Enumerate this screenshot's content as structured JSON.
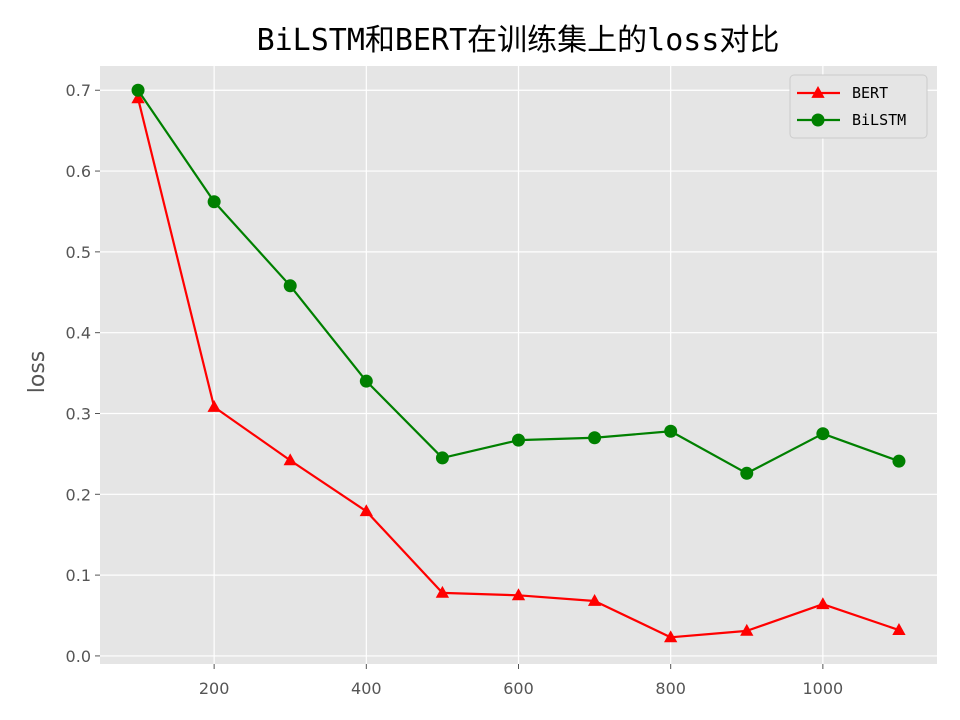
{
  "chart_data": {
    "type": "line",
    "title": "BiLSTM和BERT在训练集上的loss对比",
    "xlabel": "",
    "ylabel": "loss",
    "x": [
      100,
      200,
      300,
      400,
      500,
      600,
      700,
      800,
      900,
      1000,
      1100
    ],
    "xlim": [
      50,
      1150
    ],
    "ylim": [
      -0.01,
      0.73
    ],
    "xticks": [
      200,
      400,
      600,
      800,
      1000
    ],
    "yticks": [
      0.0,
      0.1,
      0.2,
      0.3,
      0.4,
      0.5,
      0.6,
      0.7
    ],
    "ytick_labels": [
      "0.0",
      "0.1",
      "0.2",
      "0.3",
      "0.4",
      "0.5",
      "0.6",
      "0.7"
    ],
    "grid": true,
    "legend_position": "top-right",
    "series": [
      {
        "name": "BERT",
        "color": "#ff0000",
        "marker": "triangle",
        "values": [
          0.69,
          0.308,
          0.242,
          0.179,
          0.078,
          0.075,
          0.068,
          0.023,
          0.031,
          0.064,
          0.032
        ]
      },
      {
        "name": "BiLSTM",
        "color": "#008000",
        "marker": "circle",
        "values": [
          0.7,
          0.562,
          0.458,
          0.34,
          0.245,
          0.267,
          0.27,
          0.278,
          0.226,
          0.275,
          0.241
        ]
      }
    ]
  }
}
